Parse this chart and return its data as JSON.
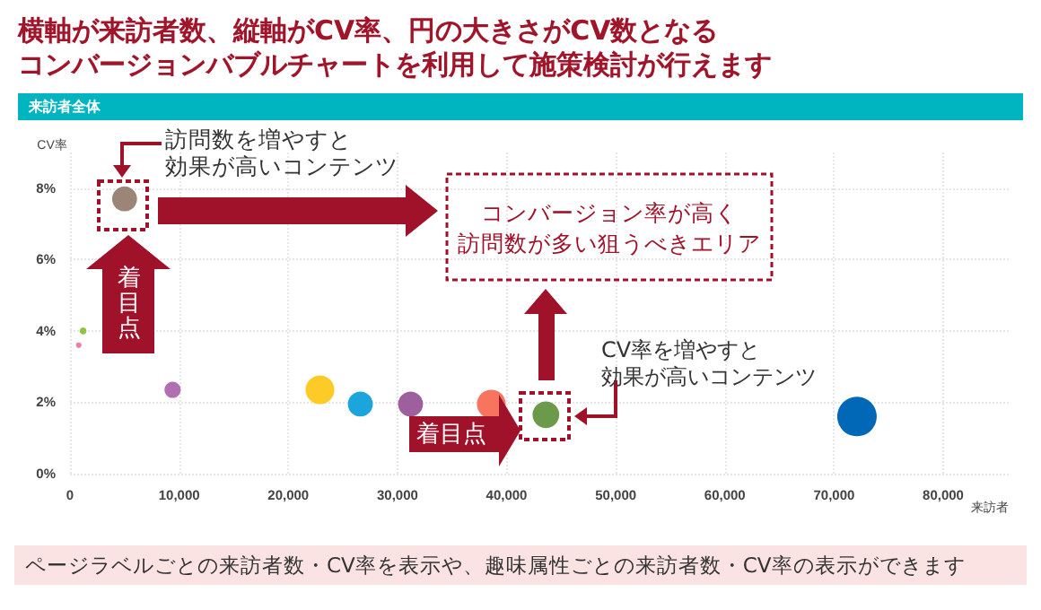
{
  "chart_data": {
    "type": "bubble",
    "title": "横軸が来訪者数、縦軸がCV率、円の大きさがCV数となるコンバージョンバブルチャートを利用して施策検討が行えます",
    "subtitle": "来訪者全体",
    "xlabel": "来訪者",
    "ylabel": "CV率",
    "x": [
      5000,
      1200,
      800,
      9400,
      22900,
      26600,
      31200,
      38600,
      43600,
      72100
    ],
    "values": [
      7.7,
      4.0,
      3.6,
      2.35,
      2.35,
      1.95,
      1.95,
      1.95,
      1.65,
      1.6
    ],
    "sizes": [
      0.4,
      0.03,
      0.02,
      0.17,
      0.53,
      0.4,
      0.4,
      0.53,
      0.46,
      1
    ],
    "colors": [
      "#9b8576",
      "#8dc63f",
      "#f47c9c",
      "#b06fb0",
      "#fccb28",
      "#1ca4dc",
      "#9e5f9e",
      "#f8745e",
      "#6a9a4a",
      "#0068b7"
    ],
    "xlim": [
      0,
      86000
    ],
    "xticks": [
      0,
      {
        "value": 10000,
        "label": "10,000"
      },
      {
        "value": 20000,
        "label": "20,000"
      },
      {
        "value": 30000,
        "label": "30,000"
      },
      {
        "value": 40000,
        "label": "40,000"
      },
      {
        "value": 50000,
        "label": "50,000"
      },
      {
        "value": 60000,
        "label": "60,000"
      },
      {
        "value": 70000,
        "label": "70,000"
      },
      {
        "value": 80000,
        "label": "80,000"
      }
    ],
    "ylim": [
      0,
      9
    ],
    "yticks": [
      {
        "value": 0,
        "label": "0%"
      },
      {
        "value": 2,
        "label": "2%"
      },
      {
        "value": 4,
        "label": "4%"
      },
      {
        "value": 6,
        "label": "6%"
      },
      {
        "value": 8,
        "label": "8%"
      }
    ],
    "grid": true,
    "annotations": [
      "訪問数を増やすと効果が高いコンテンツ",
      "着目点",
      "コンバージョン率が高く訪問数が多い狙うべきエリア",
      "CV率を増やすと効果が高いコンテンツ",
      "着目点",
      "ページラベルごとの来訪者数・CV率を表示や、趣味属性ごとの来訪者数・CV率の表示ができます"
    ]
  }
}
